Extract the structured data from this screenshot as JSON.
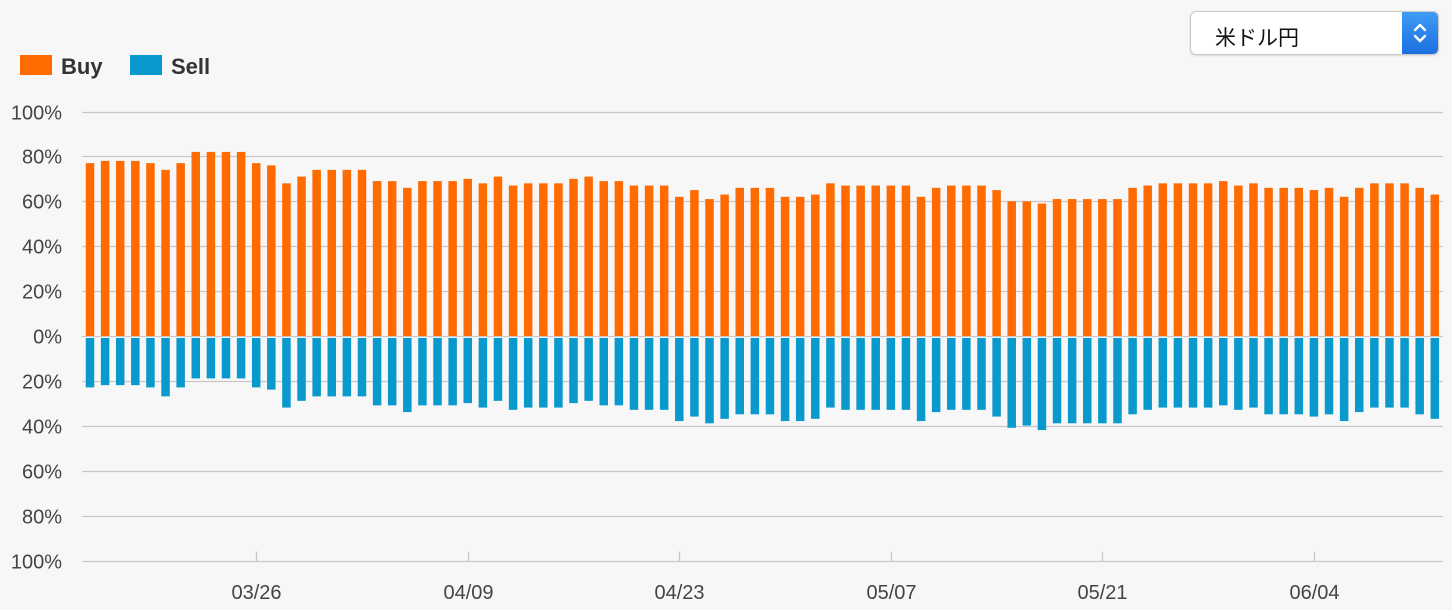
{
  "selector": {
    "selected": "米ドル円",
    "icon": "up-down-chevron-icon"
  },
  "colors": {
    "buy": "#ff6b00",
    "sell": "#0a99cc",
    "grid": "#c8c8c8",
    "background": "#f7f7f7"
  },
  "chart_data": {
    "type": "bar",
    "legend": [
      {
        "name": "Buy",
        "color": "#ff6b00"
      },
      {
        "name": "Sell",
        "color": "#0a99cc"
      }
    ],
    "legend_position": "top-left",
    "grid": true,
    "y_tick_labels": [
      "100%",
      "80%",
      "60%",
      "40%",
      "20%",
      "0%",
      "20%",
      "40%",
      "60%",
      "80%",
      "100%"
    ],
    "ylim": [
      -100,
      100
    ],
    "x_tick_labels": [
      {
        "label": "03/26",
        "index": 11
      },
      {
        "label": "04/09",
        "index": 25
      },
      {
        "label": "04/23",
        "index": 39
      },
      {
        "label": "05/07",
        "index": 53
      },
      {
        "label": "05/21",
        "index": 67
      },
      {
        "label": "06/04",
        "index": 81
      }
    ],
    "series": [
      {
        "name": "Buy",
        "values": [
          77,
          78,
          78,
          78,
          77,
          74,
          77,
          82,
          82,
          82,
          82,
          77,
          76,
          68,
          71,
          74,
          74,
          74,
          74,
          69,
          69,
          66,
          69,
          69,
          69,
          70,
          68,
          71,
          67,
          68,
          68,
          68,
          70,
          71,
          69,
          69,
          67,
          67,
          67,
          62,
          65,
          61,
          63,
          66,
          66,
          66,
          62,
          62,
          63,
          68,
          67,
          67,
          67,
          67,
          67,
          62,
          66,
          67,
          67,
          67,
          65,
          60,
          60,
          59,
          61,
          61,
          61,
          61,
          61,
          66,
          67,
          68,
          68,
          68,
          68,
          69,
          67,
          68,
          66,
          66,
          66,
          65,
          66,
          62,
          66,
          68,
          68,
          68,
          66,
          63
        ]
      },
      {
        "name": "Sell",
        "values": [
          22,
          21,
          21,
          21,
          22,
          26,
          22,
          18,
          18,
          18,
          18,
          22,
          23,
          31,
          28,
          26,
          26,
          26,
          26,
          30,
          30,
          33,
          30,
          30,
          30,
          29,
          31,
          28,
          32,
          31,
          31,
          31,
          29,
          28,
          30,
          30,
          32,
          32,
          32,
          37,
          35,
          38,
          36,
          34,
          34,
          34,
          37,
          37,
          36,
          31,
          32,
          32,
          32,
          32,
          32,
          37,
          33,
          32,
          32,
          32,
          35,
          40,
          39,
          41,
          38,
          38,
          38,
          38,
          38,
          34,
          32,
          31,
          31,
          31,
          31,
          30,
          32,
          31,
          34,
          34,
          34,
          35,
          34,
          37,
          33,
          31,
          31,
          31,
          34,
          36
        ]
      }
    ]
  }
}
